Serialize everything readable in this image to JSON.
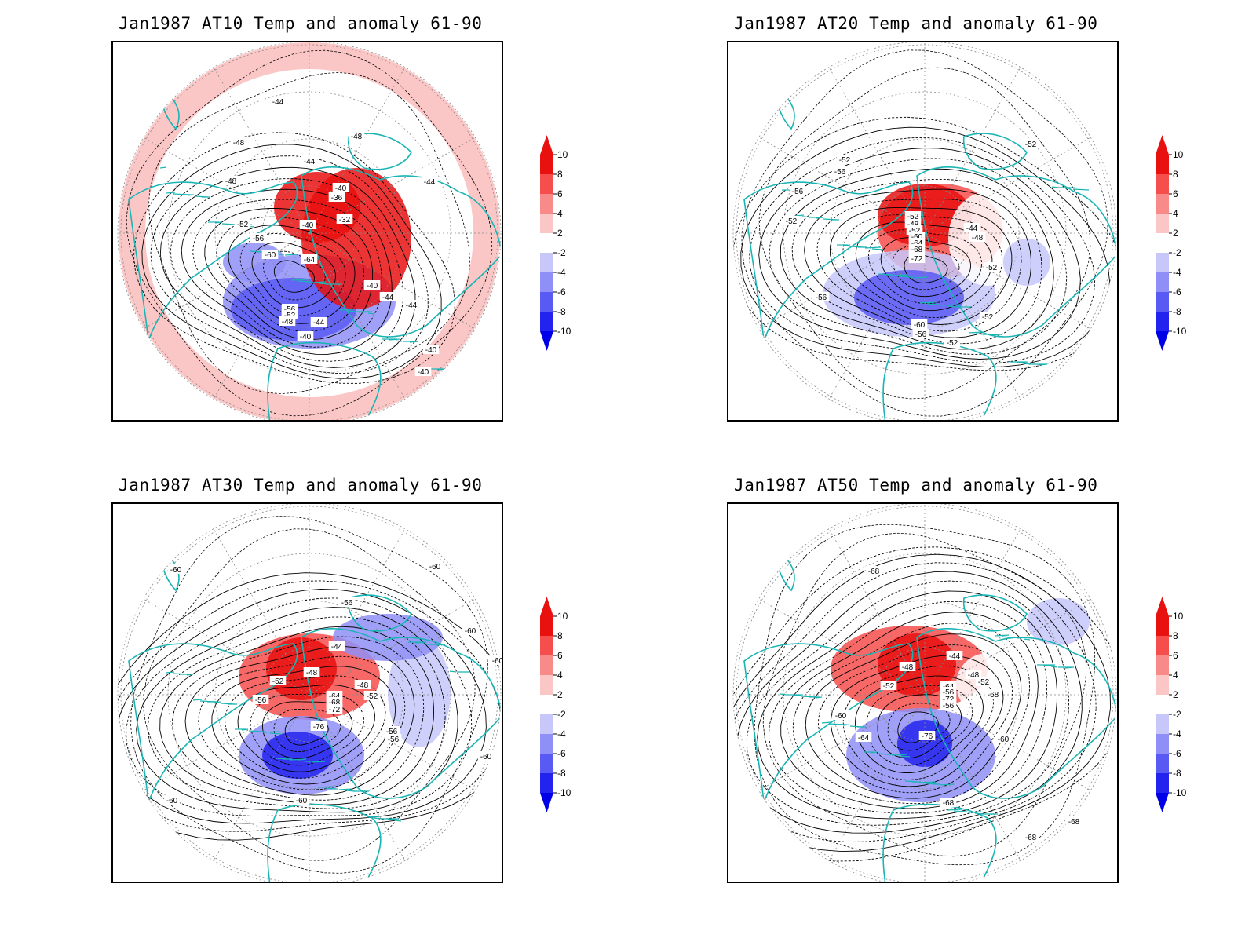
{
  "panels": [
    {
      "title": "Jan1987 AT10 Temp and anomaly 61-90",
      "contour_labels": [
        "-44",
        "-48",
        "-48",
        "-44",
        "-44",
        "-48",
        "-40",
        "-36",
        "-52",
        "-32",
        "-56",
        "-40",
        "-60",
        "-64",
        "-40",
        "-44",
        "-44",
        "-56",
        "-52",
        "-48",
        "-44",
        "-40",
        "-40",
        "-40"
      ]
    },
    {
      "title": "Jan1987 AT20 Temp and anomaly 61-90",
      "contour_labels": [
        "-52",
        "-56",
        "-56",
        "-52",
        "-52",
        "-48",
        "-52",
        "-44",
        "-60",
        "-48",
        "-64",
        "-68",
        "-72",
        "-56",
        "-52",
        "-52",
        "-60",
        "-56",
        "-52",
        "-52"
      ]
    },
    {
      "title": "Jan1987 AT30 Temp and anomaly 61-90",
      "contour_labels": [
        "-60",
        "-60",
        "-56",
        "-60",
        "-44",
        "-60",
        "-52",
        "-48",
        "-48",
        "-56",
        "-52",
        "-64",
        "-68",
        "-72",
        "-76",
        "-56",
        "-56",
        "-60",
        "-60",
        "-60"
      ]
    },
    {
      "title": "Jan1987 AT50 Temp and anomaly 61-90",
      "contour_labels": [
        "-68",
        "-44",
        "-48",
        "-48",
        "-52",
        "-52",
        "-64",
        "-56",
        "-68",
        "-72",
        "-56",
        "-60",
        "-76",
        "-60",
        "-64",
        "-68",
        "-68",
        "-68"
      ]
    }
  ],
  "colorbar": {
    "labels": [
      "10",
      "8",
      "6",
      "4",
      "2",
      "-2",
      "-4",
      "-6",
      "-8",
      "-10"
    ],
    "colors": [
      "#e8110f",
      "#f64e4c",
      "#f88a89",
      "#fbc7c6",
      "#ffffff",
      "#c7c7fa",
      "#8f8ff7",
      "#5959f4",
      "#2323f0"
    ],
    "arrow_top": "#e8110f",
    "arrow_bottom": "#0000e8"
  },
  "colors": {
    "coastline": "#19b5b5",
    "contour": "#000000",
    "grid": "#888888"
  }
}
